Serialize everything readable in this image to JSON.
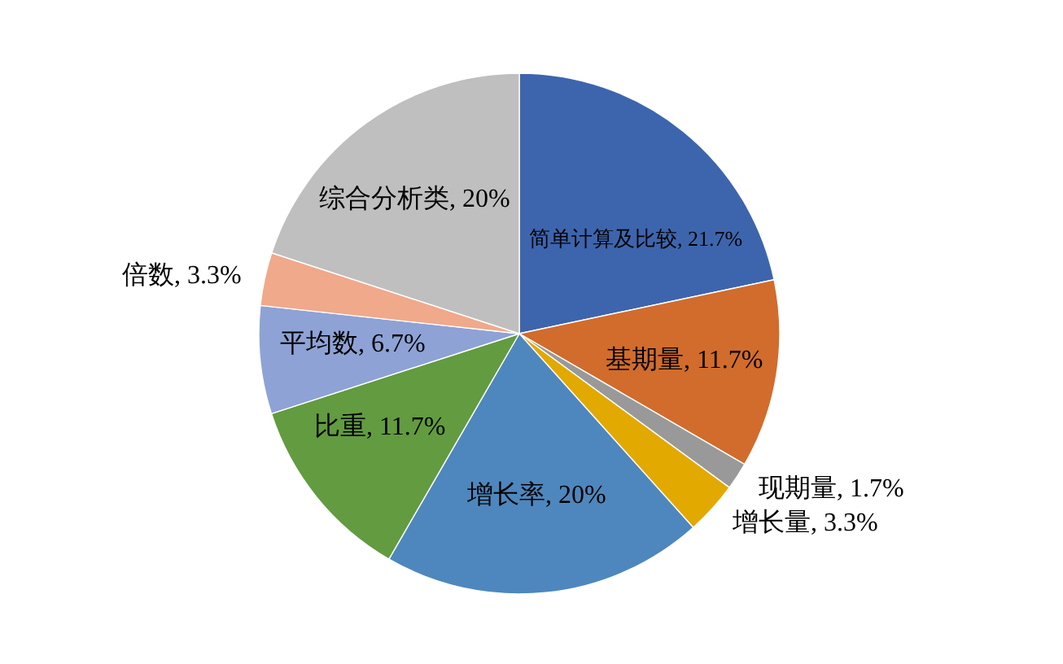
{
  "chart_data": {
    "type": "pie",
    "categories": [
      "简单计算及比较",
      "基期量",
      "现期量",
      "增长量",
      "增长率",
      "比重",
      "平均数",
      "倍数",
      "综合分析类"
    ],
    "values": [
      21.7,
      11.7,
      1.7,
      3.3,
      20,
      11.7,
      6.7,
      3.3,
      20
    ],
    "value_labels": [
      "21.7%",
      "11.7%",
      "1.7%",
      "3.3%",
      "20%",
      "11.7%",
      "6.7%",
      "3.3%",
      "20%"
    ],
    "colors": [
      "#3d65ad",
      "#d16c2c",
      "#999999",
      "#e2a900",
      "#4e87bd",
      "#629b40",
      "#8ea2d5",
      "#f0a98a",
      "#bfbfbf"
    ],
    "legend": false
  }
}
